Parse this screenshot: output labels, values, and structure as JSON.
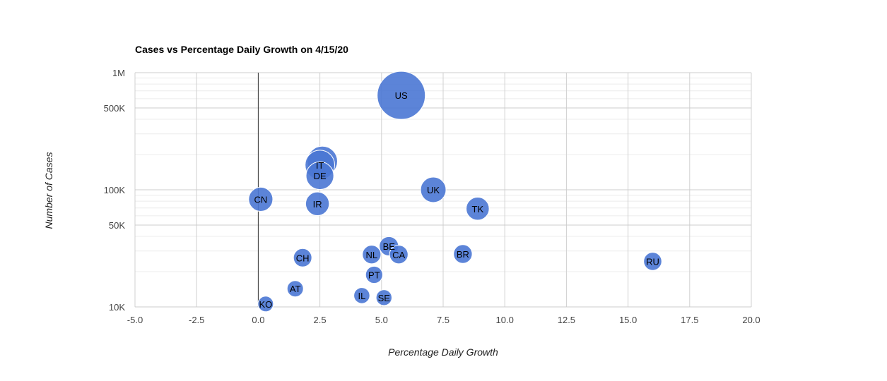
{
  "chart_data": {
    "type": "scatter",
    "title": "Cases vs Percentage Daily Growth on 4/15/20",
    "xlabel": "Percentage Daily Growth",
    "ylabel": "Number of Cases",
    "xlim": [
      -5,
      20
    ],
    "ylim": [
      10000,
      1000000
    ],
    "yscale": "log",
    "x_ticks": [
      "-5.0",
      "-2.5",
      "0.0",
      "2.5",
      "5.0",
      "7.5",
      "10.0",
      "12.5",
      "15.0",
      "17.5",
      "20.0"
    ],
    "y_ticks": [
      {
        "value": 10000,
        "label": "10K"
      },
      {
        "value": 50000,
        "label": "50K"
      },
      {
        "value": 100000,
        "label": "100K"
      },
      {
        "value": 500000,
        "label": "500K"
      },
      {
        "value": 1000000,
        "label": "1M"
      }
    ],
    "grid": true,
    "bubble_color": "#4a77d4",
    "points": [
      {
        "label": "US",
        "x": 5.8,
        "y": 640000,
        "size": 640000
      },
      {
        "label": "",
        "x": 2.6,
        "y": 175000,
        "size": 175000
      },
      {
        "label": "IT",
        "x": 2.5,
        "y": 163000,
        "size": 163000
      },
      {
        "label": "DE",
        "x": 2.5,
        "y": 132000,
        "size": 132000
      },
      {
        "label": "UK",
        "x": 7.1,
        "y": 100000,
        "size": 100000
      },
      {
        "label": "CN",
        "x": 0.1,
        "y": 83000,
        "size": 83000
      },
      {
        "label": "IR",
        "x": 2.4,
        "y": 76000,
        "size": 76000
      },
      {
        "label": "TK",
        "x": 8.9,
        "y": 69000,
        "size": 69000
      },
      {
        "label": "BE",
        "x": 5.3,
        "y": 33000,
        "size": 33000
      },
      {
        "label": "NL",
        "x": 4.6,
        "y": 28000,
        "size": 28000
      },
      {
        "label": "CA",
        "x": 5.7,
        "y": 28000,
        "size": 28000
      },
      {
        "label": "BR",
        "x": 8.3,
        "y": 28300,
        "size": 28300
      },
      {
        "label": "CH",
        "x": 1.8,
        "y": 26300,
        "size": 26300
      },
      {
        "label": "RU",
        "x": 16.0,
        "y": 24500,
        "size": 24500
      },
      {
        "label": "PT",
        "x": 4.7,
        "y": 18800,
        "size": 18800
      },
      {
        "label": "AT",
        "x": 1.5,
        "y": 14300,
        "size": 14300
      },
      {
        "label": "IL",
        "x": 4.2,
        "y": 12500,
        "size": 12500
      },
      {
        "label": "SE",
        "x": 5.1,
        "y": 12000,
        "size": 12000
      },
      {
        "label": "KO",
        "x": 0.3,
        "y": 10600,
        "size": 10600
      }
    ]
  }
}
